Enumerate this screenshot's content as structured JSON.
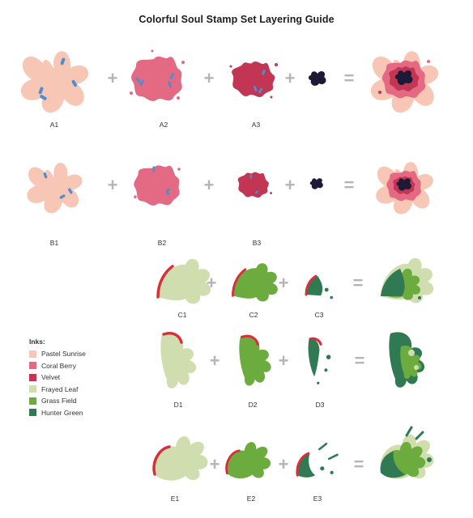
{
  "title": "Colorful Soul Stamp Set Layering Guide",
  "colors": {
    "pastel_sunrise": "#f7c6b4",
    "coral_berry": "#e46a84",
    "velvet": "#c23654",
    "frayed_leaf": "#d0ddae",
    "grass_field": "#6cac3f",
    "hunter_green": "#2f7a52",
    "ink_dark": "#1c1a36",
    "marker_blue": "#4a8fd0",
    "edge_red": "#d8303a"
  },
  "labels": {
    "a1": "A1",
    "a2": "A2",
    "a3": "A3",
    "b1": "B1",
    "b2": "B2",
    "b3": "B3",
    "c1": "C1",
    "c2": "C2",
    "c3": "C3",
    "d1": "D1",
    "d2": "D2",
    "d3": "D3",
    "e1": "E1",
    "e2": "E2",
    "e3": "E3"
  },
  "operators": {
    "plus": "+",
    "equals": "="
  },
  "legend": {
    "heading": "Inks:",
    "items": [
      {
        "name": "Pastel Sunrise",
        "color": "#f7c6b4"
      },
      {
        "name": "Coral Berry",
        "color": "#e46a84"
      },
      {
        "name": "Velvet",
        "color": "#c23654"
      },
      {
        "name": "Frayed Leaf",
        "color": "#d0ddae"
      },
      {
        "name": "Grass Field",
        "color": "#6cac3f"
      },
      {
        "name": "Hunter Green",
        "color": "#2f7a52"
      }
    ]
  }
}
